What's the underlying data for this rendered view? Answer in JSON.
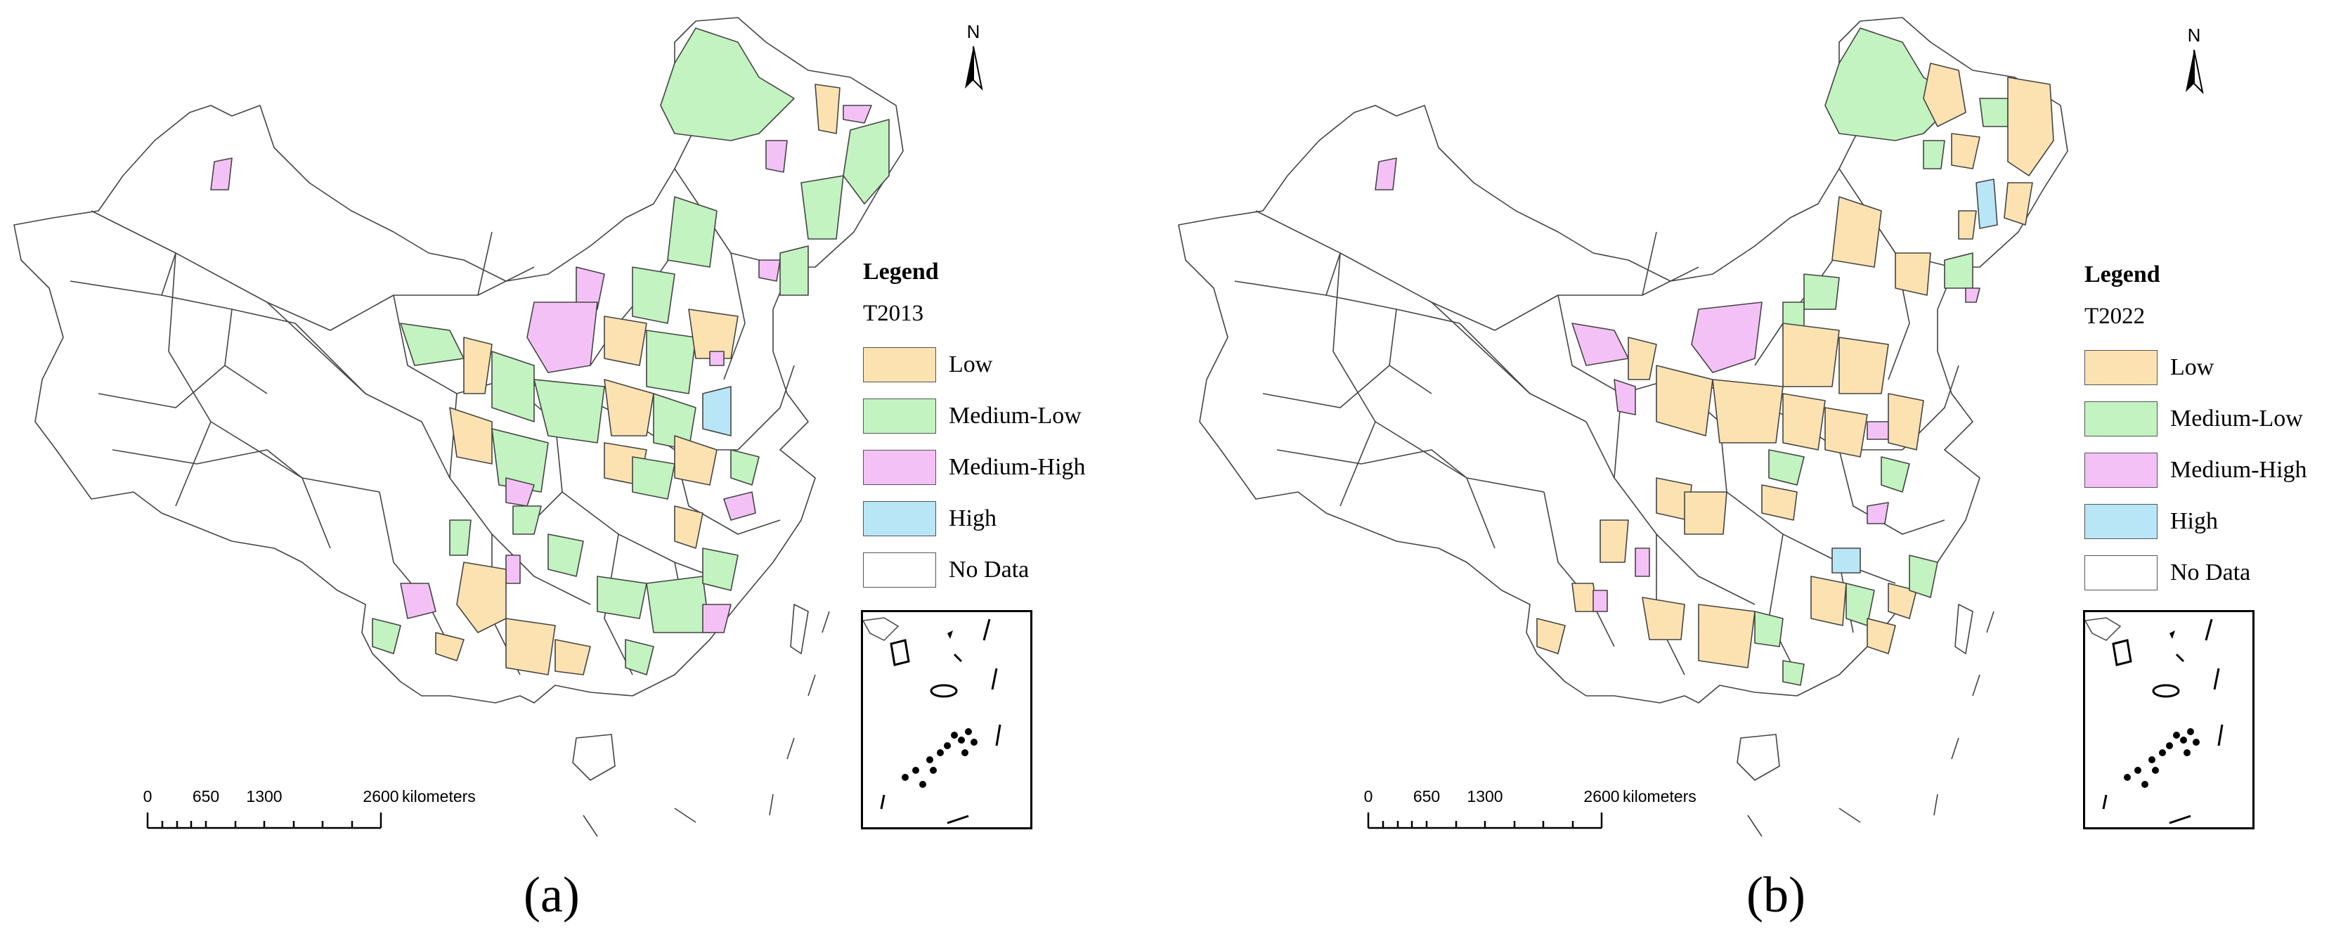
{
  "legend_colors": {
    "low": "#fbe2b0",
    "medium_low": "#c2f3c0",
    "medium_high": "#f4c1f6",
    "high": "#b9e6f7",
    "no_data": "#ffffff"
  },
  "panels": [
    {
      "label": "(a)",
      "legend_title": "Legend",
      "legend_field": "T2013",
      "legend_items": [
        {
          "label": "Low",
          "color": "#fbe2b0"
        },
        {
          "label": "Medium-Low",
          "color": "#c2f3c0"
        },
        {
          "label": "Medium-High",
          "color": "#f4c1f6"
        },
        {
          "label": "High",
          "color": "#b9e6f7"
        },
        {
          "label": "No Data",
          "color": "#ffffff"
        }
      ],
      "north_label": "N",
      "scale_ticks": [
        "0",
        "650",
        "1300",
        "2600"
      ],
      "scale_unit": "kilometers"
    },
    {
      "label": "(b)",
      "legend_title": "Legend",
      "legend_field": "T2022",
      "legend_items": [
        {
          "label": "Low",
          "color": "#fbe2b0"
        },
        {
          "label": "Medium-Low",
          "color": "#c2f3c0"
        },
        {
          "label": "Medium-High",
          "color": "#f4c1f6"
        },
        {
          "label": "High",
          "color": "#b9e6f7"
        },
        {
          "label": "No Data",
          "color": "#ffffff"
        }
      ],
      "north_label": "N",
      "scale_ticks": [
        "0",
        "650",
        "1300",
        "2600"
      ],
      "scale_unit": "kilometers"
    }
  ]
}
